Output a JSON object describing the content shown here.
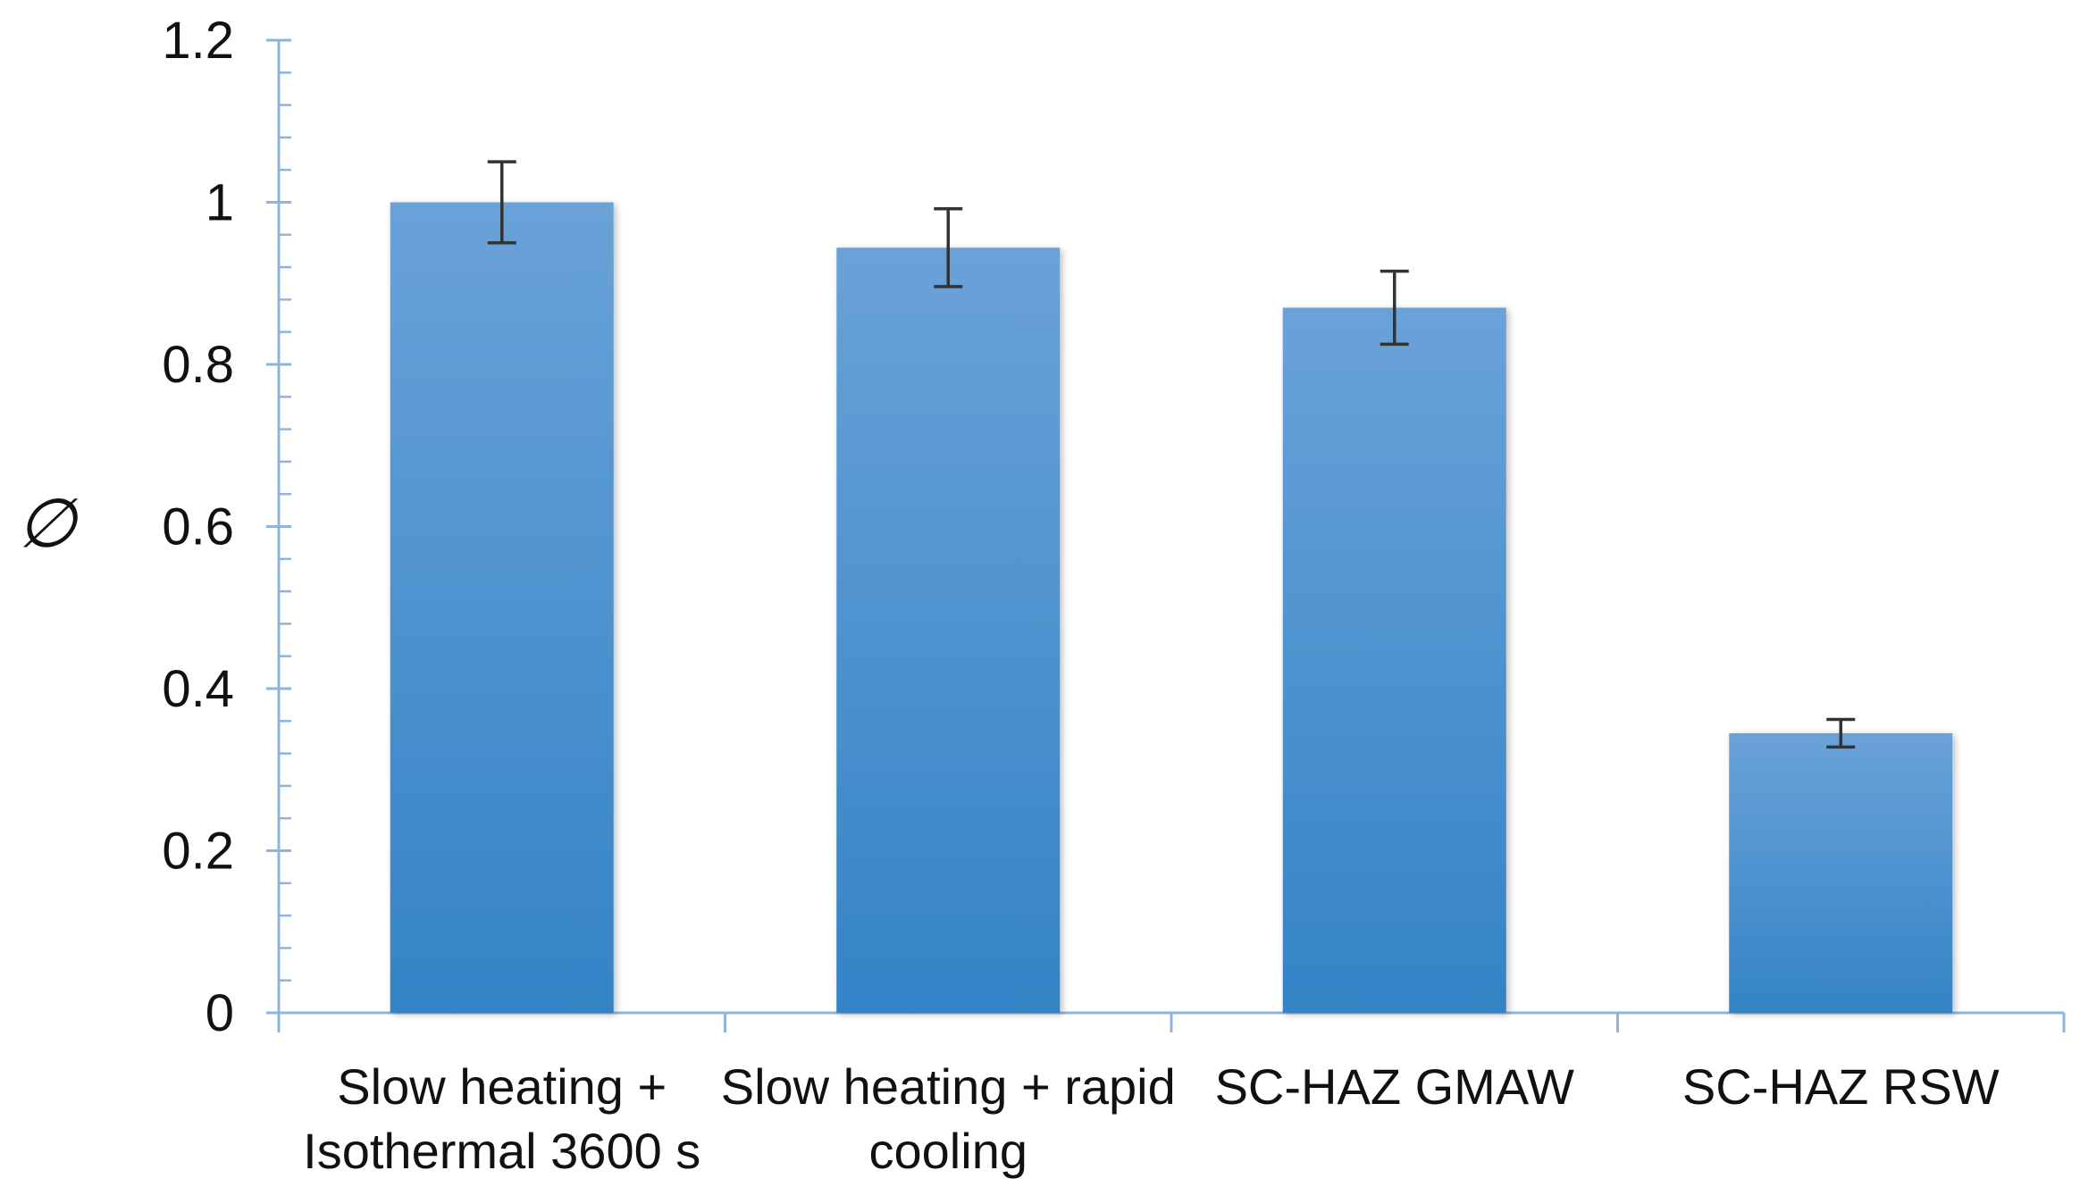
{
  "chart_data": {
    "type": "bar",
    "categories": [
      [
        "Slow heating +",
        "Isothermal 3600 s"
      ],
      [
        "Slow heating + rapid",
        "cooling"
      ],
      [
        "SC-HAZ GMAW"
      ],
      [
        "SC-HAZ RSW"
      ]
    ],
    "values": [
      1.0,
      0.944,
      0.87,
      0.345
    ],
    "error": [
      0.05,
      0.048,
      0.045,
      0.017
    ],
    "title": "",
    "xlabel": "",
    "ylabel": "∅",
    "ylim": [
      0,
      1.2
    ],
    "yticks": [
      0,
      0.2,
      0.4,
      0.6,
      0.8,
      1,
      1.2
    ],
    "ytick_labels": [
      "0",
      "0.2",
      "0.4",
      "0.6",
      "0.8",
      "1",
      "1.2"
    ],
    "grid": false,
    "legend": "none",
    "colors": {
      "bar_top": "#6aa2d8",
      "bar_bottom": "#3383c6",
      "axis": "#8fb4dc",
      "error_bar": "#333333"
    }
  }
}
